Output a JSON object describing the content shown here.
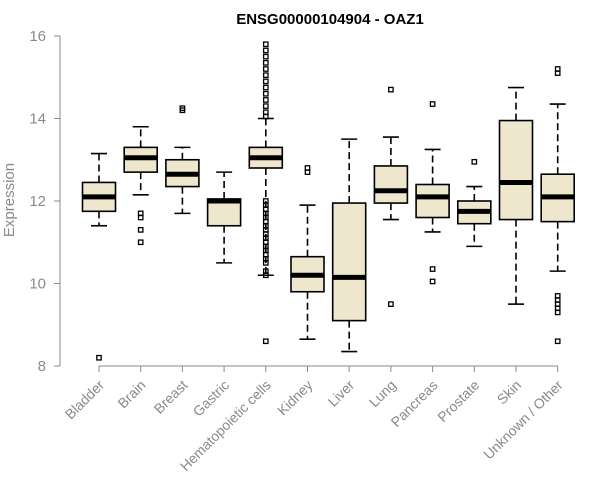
{
  "chart_data": {
    "type": "boxplot",
    "title": "ENSG00000104904 - OAZ1",
    "xlabel": "",
    "ylabel": "Expression",
    "ylim": [
      8,
      16
    ],
    "yticks": [
      8,
      10,
      12,
      14,
      16
    ],
    "box_fill": "#efe7cd",
    "categories": [
      "Bladder",
      "Brain",
      "Breast",
      "Gastric",
      "Hematopoietic cells",
      "Kidney",
      "Liver",
      "Lung",
      "Pancreas",
      "Prostate",
      "Skin",
      "Unknown / Other"
    ],
    "boxes": [
      {
        "name": "Bladder",
        "whisker_low": 11.4,
        "q1": 11.75,
        "median": 12.1,
        "q3": 12.45,
        "whisker_high": 13.15,
        "outliers": [
          8.2
        ]
      },
      {
        "name": "Brain",
        "whisker_low": 12.15,
        "q1": 12.7,
        "median": 13.05,
        "q3": 13.3,
        "whisker_high": 13.8,
        "outliers": [
          11.7,
          11.6,
          11.3,
          11.0
        ]
      },
      {
        "name": "Breast",
        "whisker_low": 11.7,
        "q1": 12.35,
        "median": 12.65,
        "q3": 13.0,
        "whisker_high": 13.3,
        "outliers": [
          14.2,
          14.25
        ]
      },
      {
        "name": "Gastric",
        "whisker_low": 10.5,
        "q1": 11.4,
        "median": 12.0,
        "q3": 12.05,
        "whisker_high": 12.7,
        "outliers": []
      },
      {
        "name": "Hematopoietic cells",
        "whisker_low": 10.2,
        "q1": 12.8,
        "median": 13.05,
        "q3": 13.3,
        "whisker_high": 14.0,
        "outliers": [
          8.6,
          10.2,
          10.3,
          10.5,
          10.6,
          10.7,
          10.8,
          10.9,
          11.0,
          11.1,
          11.2,
          11.3,
          11.4,
          11.5,
          11.6,
          11.7,
          11.8,
          11.9,
          12.0,
          14.05,
          14.15,
          14.3,
          14.45,
          14.6,
          14.75,
          14.9,
          15.05,
          15.2,
          15.35,
          15.5,
          15.65,
          15.8
        ]
      },
      {
        "name": "Kidney",
        "whisker_low": 8.65,
        "q1": 9.8,
        "median": 10.2,
        "q3": 10.65,
        "whisker_high": 11.9,
        "outliers": [
          12.7,
          12.8
        ]
      },
      {
        "name": "Liver",
        "whisker_low": 8.35,
        "q1": 9.1,
        "median": 10.15,
        "q3": 11.95,
        "whisker_high": 13.5,
        "outliers": []
      },
      {
        "name": "Lung",
        "whisker_low": 11.55,
        "q1": 11.95,
        "median": 12.25,
        "q3": 12.85,
        "whisker_high": 13.55,
        "outliers": [
          14.7,
          9.5
        ]
      },
      {
        "name": "Pancreas",
        "whisker_low": 11.25,
        "q1": 11.6,
        "median": 12.1,
        "q3": 12.4,
        "whisker_high": 13.25,
        "outliers": [
          14.35,
          10.35,
          10.05
        ]
      },
      {
        "name": "Prostate",
        "whisker_low": 10.9,
        "q1": 11.45,
        "median": 11.75,
        "q3": 12.0,
        "whisker_high": 12.35,
        "outliers": [
          12.95
        ]
      },
      {
        "name": "Skin",
        "whisker_low": 9.5,
        "q1": 11.55,
        "median": 12.45,
        "q3": 13.95,
        "whisker_high": 14.75,
        "outliers": []
      },
      {
        "name": "Unknown / Other",
        "whisker_low": 10.3,
        "q1": 11.5,
        "median": 12.1,
        "q3": 12.65,
        "whisker_high": 14.35,
        "outliers": [
          15.2,
          15.1,
          9.7,
          9.6,
          9.5,
          9.4,
          9.3,
          8.6
        ]
      }
    ]
  }
}
